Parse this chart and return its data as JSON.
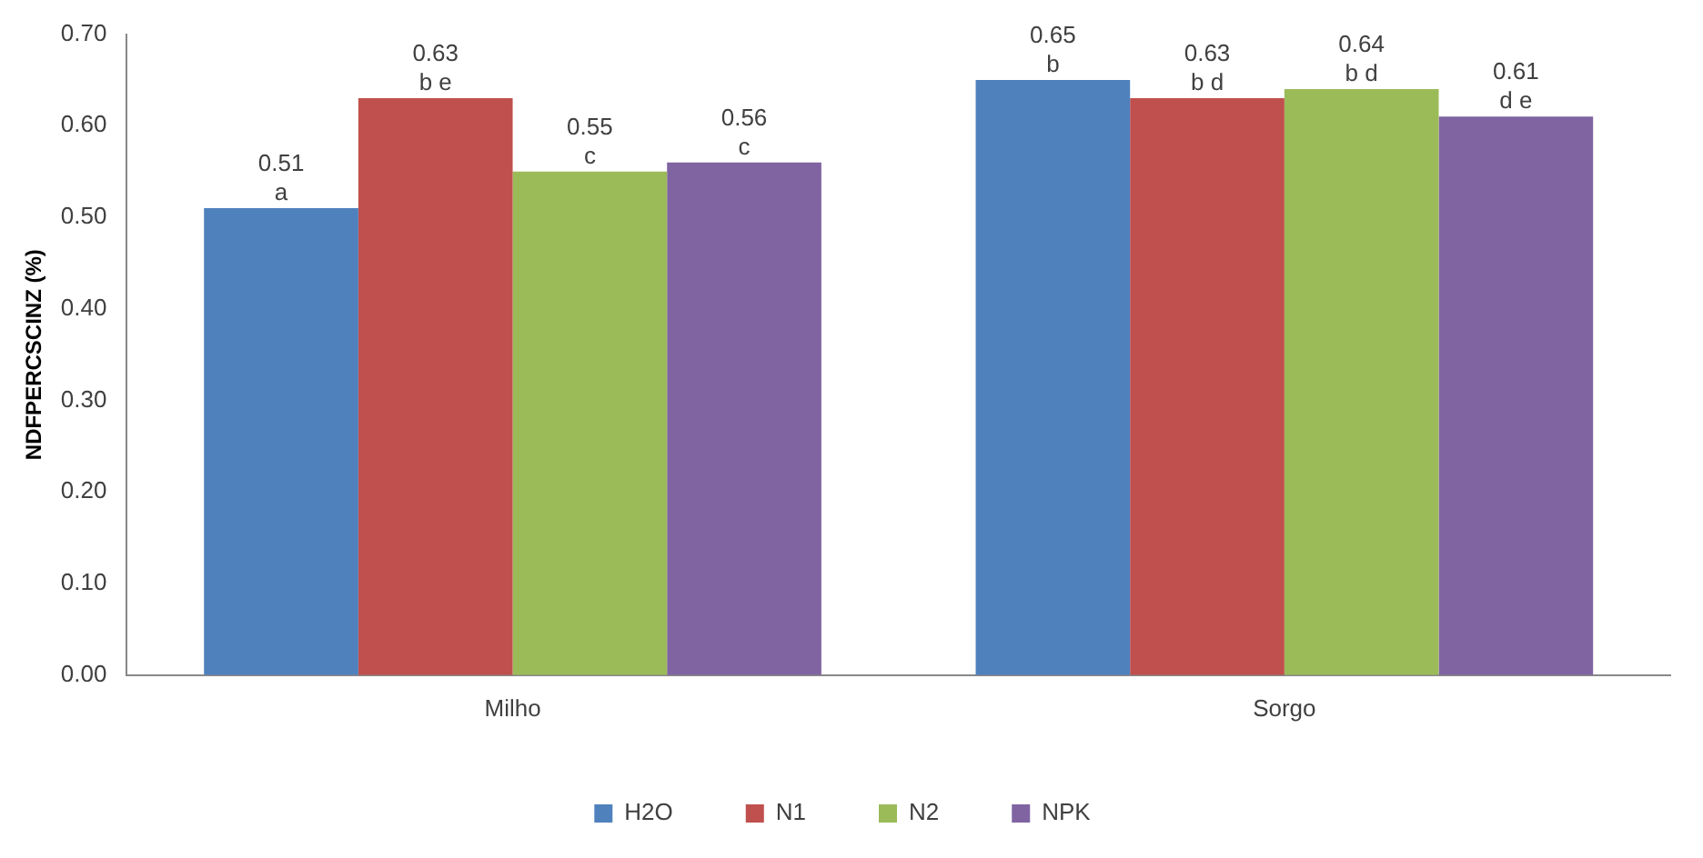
{
  "chart_data": {
    "type": "bar",
    "ylabel": "NDFPERCSCINZ (%)",
    "categories": [
      "Milho",
      "Sorgo"
    ],
    "series": [
      {
        "name": "H2O",
        "color": "#4f81bd",
        "values": [
          0.51,
          0.65
        ],
        "value_labels": [
          "0.51\na",
          "0.65\nb"
        ]
      },
      {
        "name": "N1",
        "color": "#c0504d",
        "values": [
          0.63,
          0.63
        ],
        "value_labels": [
          "0.63\nb e",
          "0.63\nb d"
        ]
      },
      {
        "name": "N2",
        "color": "#9bbb59",
        "values": [
          0.55,
          0.64
        ],
        "value_labels": [
          "0.55\nc",
          "0.64\nb d"
        ]
      },
      {
        "name": "NPK",
        "color": "#8064a2",
        "values": [
          0.56,
          0.61
        ],
        "value_labels": [
          "0.56\nc",
          "0.61\nd e"
        ]
      }
    ],
    "ylim": [
      0,
      0.7
    ],
    "yticks": [
      {
        "value": 0,
        "label": "0.00"
      },
      {
        "value": 0.1,
        "label": "0.10"
      },
      {
        "value": 0.2,
        "label": "0.20"
      },
      {
        "value": 0.3,
        "label": "0.30"
      },
      {
        "value": 0.4,
        "label": "0.40"
      },
      {
        "value": 0.5,
        "label": "0.50"
      },
      {
        "value": 0.6,
        "label": "0.60"
      },
      {
        "value": 0.7,
        "label": "0.70"
      }
    ],
    "grid": false,
    "legend": "bottom"
  }
}
